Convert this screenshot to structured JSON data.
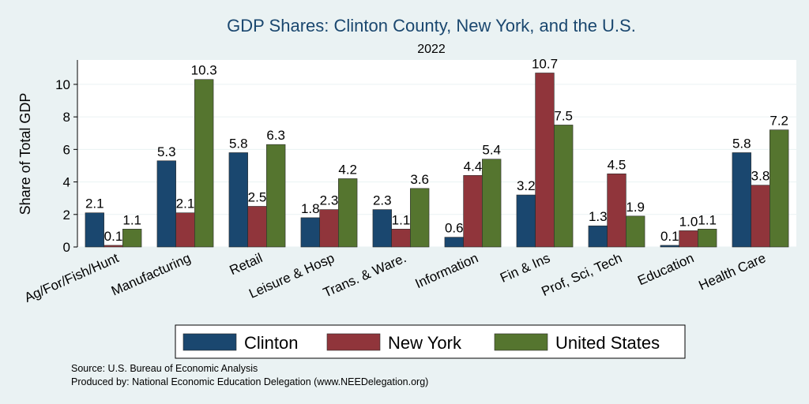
{
  "chart_data": {
    "type": "bar",
    "title": "GDP Shares: Clinton County, New York, and the U.S.",
    "subtitle": "2022",
    "ylabel": "Share of Total GDP",
    "xlabel": "",
    "ylim": [
      0,
      11.5
    ],
    "yticks": [
      0,
      2,
      4,
      6,
      8,
      10
    ],
    "grid": true,
    "legend_position": "bottom",
    "categories": [
      "Ag/For/Fish/Hunt",
      "Manufacturing",
      "Retail",
      "Leisure & Hosp",
      "Trans. & Ware.",
      "Information",
      "Fin & Ins",
      "Prof, Sci, Tech",
      "Education",
      "Health Care"
    ],
    "series": [
      {
        "name": "Clinton",
        "color": "#1a476f",
        "values": [
          2.1,
          5.3,
          5.8,
          1.8,
          2.3,
          0.6,
          3.2,
          1.3,
          0.1,
          5.8
        ],
        "labels": [
          "2.1",
          "5.3",
          "5.8",
          "1.8",
          "2.3",
          "0.6",
          "3.2",
          "1.3",
          "0.1",
          "5.8"
        ]
      },
      {
        "name": "New York",
        "color": "#90353b",
        "values": [
          0.1,
          2.1,
          2.5,
          2.3,
          1.1,
          4.4,
          10.7,
          4.5,
          1.0,
          3.8
        ],
        "labels": [
          "0.1",
          "2.1",
          "2.5",
          "2.3",
          "1.1",
          "4.4",
          "10.7",
          "4.5",
          "1.0",
          "3.8"
        ]
      },
      {
        "name": "United States",
        "color": "#55752f",
        "values": [
          1.1,
          10.3,
          6.3,
          4.2,
          3.6,
          5.4,
          7.5,
          1.9,
          1.1,
          7.2
        ],
        "labels": [
          "1.1",
          "10.3",
          "6.3",
          "4.2",
          "3.6",
          "5.4",
          "7.5",
          "1.9",
          "1.1",
          "7.2"
        ]
      }
    ]
  },
  "notes": {
    "source": "Source: U.S. Bureau of Economic Analysis",
    "produced_by": "Produced by: National Economic Education Delegation (www.NEEDelegation.org)"
  },
  "colors": {
    "background": "#eaf2f3",
    "plot_background": "#ffffff",
    "gridline": "#eaf2f3",
    "title": "#1a476f"
  }
}
